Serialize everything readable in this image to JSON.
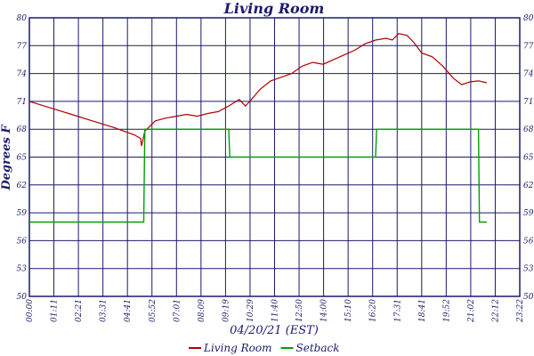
{
  "chart_data": {
    "type": "line",
    "title": "Living Room",
    "xlabel": "04/20/21 (EST)",
    "ylabel": "Degrees F",
    "x_ticks": [
      "00:00",
      "01:11",
      "02:21",
      "03:31",
      "04:41",
      "05:52",
      "07:01",
      "08:09",
      "09:19",
      "10:29",
      "11:40",
      "12:50",
      "14:00",
      "15:10",
      "16:20",
      "17:31",
      "18:41",
      "19:52",
      "21:02",
      "22:12",
      "23:22"
    ],
    "y_ticks": [
      "50",
      "53",
      "56",
      "59",
      "62",
      "65",
      "68",
      "71",
      "74",
      "77",
      "80"
    ],
    "ylim": [
      50,
      80
    ],
    "grid": true,
    "legend_position": "bottom-center",
    "series": [
      {
        "name": "Living Room",
        "color": "#b00000",
        "x": [
          0,
          1,
          2,
          3,
          4,
          5,
          5.3,
          5.35,
          5.5,
          6,
          6.5,
          7,
          7.5,
          8,
          8.5,
          9,
          9.5,
          10,
          10.3,
          10.5,
          11,
          11.5,
          12,
          12.5,
          13,
          13.5,
          14,
          14.5,
          15,
          15.5,
          16,
          16.5,
          17,
          17.3,
          17.6,
          18,
          18.3,
          18.7,
          19.2,
          19.7,
          20.2,
          20.6,
          21,
          21.4,
          21.8
        ],
        "values": [
          71.0,
          70.3,
          69.6,
          68.9,
          68.2,
          67.4,
          67.0,
          66.2,
          67.8,
          68.9,
          69.2,
          69.4,
          69.6,
          69.4,
          69.7,
          69.9,
          70.5,
          71.2,
          70.5,
          71.0,
          72.3,
          73.2,
          73.6,
          74.0,
          74.8,
          75.2,
          75.0,
          75.5,
          76.0,
          76.5,
          77.2,
          77.6,
          77.8,
          77.6,
          78.3,
          78.1,
          77.4,
          76.2,
          75.8,
          74.8,
          73.5,
          72.8,
          73.1,
          73.2,
          73.0
        ]
      },
      {
        "name": "Setback",
        "color": "#00a000",
        "x": [
          0,
          5.45,
          5.5,
          9.5,
          9.55,
          16.5,
          16.55,
          21.4,
          21.45,
          21.8
        ],
        "values": [
          58.0,
          58.0,
          68.0,
          68.0,
          65.0,
          65.0,
          68.0,
          68.0,
          58.0,
          58.0
        ]
      }
    ]
  }
}
